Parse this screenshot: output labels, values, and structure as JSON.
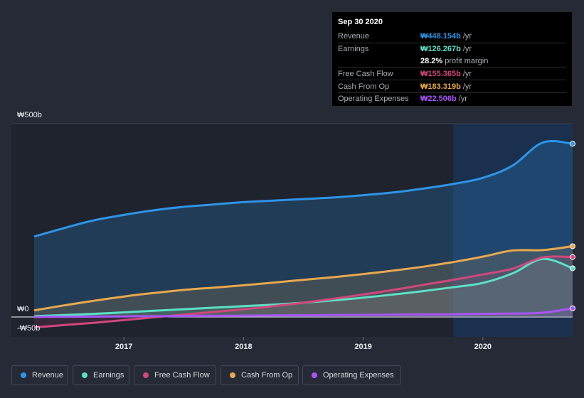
{
  "tooltip": {
    "date": "Sep 30 2020",
    "rows": [
      {
        "label": "Revenue",
        "value": "₩448.154b",
        "unit": "/yr",
        "color": "#2e94e6"
      },
      {
        "label": "Earnings",
        "value": "₩126.267b",
        "unit": "/yr",
        "color": "#5ce0c6"
      },
      {
        "label": "",
        "value": "28.2%",
        "unit": "profit margin",
        "color": "#ffffff"
      },
      {
        "label": "Free Cash Flow",
        "value": "₩155.365b",
        "unit": "/yr",
        "color": "#d0487c"
      },
      {
        "label": "Cash From Op",
        "value": "₩183.319b",
        "unit": "/yr",
        "color": "#e8a850"
      },
      {
        "label": "Operating Expenses",
        "value": "₩22.506b",
        "unit": "/yr",
        "color": "#a855f7"
      }
    ]
  },
  "legend": [
    {
      "label": "Revenue",
      "color": "#2e94e6"
    },
    {
      "label": "Earnings",
      "color": "#5ce0c6"
    },
    {
      "label": "Free Cash Flow",
      "color": "#d0487c"
    },
    {
      "label": "Cash From Op",
      "color": "#e8a850"
    },
    {
      "label": "Operating Expenses",
      "color": "#a855f7"
    }
  ],
  "chart_data": {
    "type": "area",
    "title": "",
    "xlabel": "",
    "ylabel": "",
    "unit": "₩ billions",
    "ylim": [
      -50,
      500
    ],
    "yticks": [
      {
        "value": 500,
        "label": "₩500b"
      },
      {
        "value": 0,
        "label": "₩0"
      },
      {
        "value": -50,
        "label": "-₩50b"
      }
    ],
    "xlim": [
      2016.25,
      2020.75
    ],
    "xticks": [
      {
        "value": 2017,
        "label": "2017"
      },
      {
        "value": 2018,
        "label": "2018"
      },
      {
        "value": 2019,
        "label": "2019"
      },
      {
        "value": 2020,
        "label": "2020"
      }
    ],
    "highlight_start": 2019.75,
    "x": [
      2016.25,
      2016.5,
      2016.75,
      2017.0,
      2017.25,
      2017.5,
      2017.75,
      2018.0,
      2018.25,
      2018.5,
      2018.75,
      2019.0,
      2019.25,
      2019.5,
      2019.75,
      2020.0,
      2020.25,
      2020.5,
      2020.75
    ],
    "series": [
      {
        "name": "Revenue",
        "color": "#2e94e6",
        "values": [
          208,
          230,
          250,
          264,
          276,
          285,
          291,
          297,
          301,
          305,
          309,
          315,
          322,
          332,
          344,
          360,
          392,
          451,
          448
        ]
      },
      {
        "name": "Earnings",
        "color": "#5ce0c6",
        "values": [
          2,
          5,
          8,
          12,
          16,
          20,
          24,
          28,
          32,
          37,
          43,
          50,
          58,
          67,
          77,
          88,
          113,
          150,
          126
        ]
      },
      {
        "name": "Free Cash Flow",
        "color": "#d0487c",
        "values": [
          -27,
          -21,
          -15,
          -8,
          -1,
          6,
          13,
          20,
          28,
          37,
          47,
          58,
          70,
          83,
          96,
          110,
          125,
          154,
          155
        ]
      },
      {
        "name": "Cash From Op",
        "color": "#e8a850",
        "values": [
          17,
          30,
          42,
          53,
          62,
          70,
          76,
          82,
          89,
          96,
          103,
          111,
          120,
          130,
          142,
          156,
          172,
          173,
          183
        ]
      },
      {
        "name": "Operating Expenses",
        "color": "#a855f7",
        "values": [
          0,
          0.5,
          1,
          1.5,
          2,
          2.5,
          3,
          3.5,
          4,
          4.5,
          5,
          5.5,
          6,
          6.5,
          7,
          8,
          9,
          11,
          22.5
        ]
      }
    ]
  }
}
